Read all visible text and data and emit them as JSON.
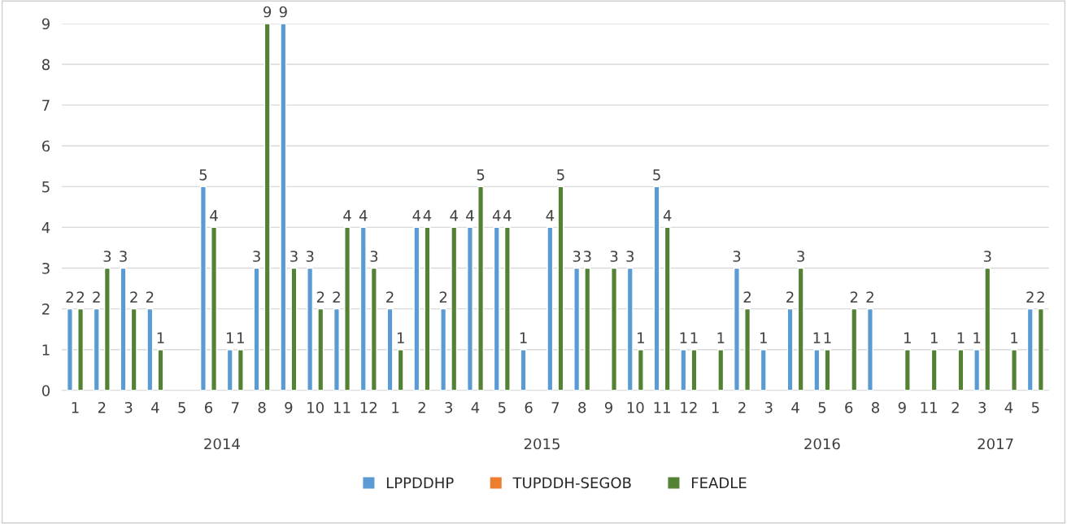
{
  "chart_data": {
    "type": "bar",
    "categories": [
      "1",
      "2",
      "3",
      "4",
      "5",
      "6",
      "7",
      "8",
      "9",
      "10",
      "11",
      "12",
      "1",
      "2",
      "3",
      "4",
      "5",
      "6",
      "7",
      "8",
      "9",
      "10",
      "11",
      "12",
      "1",
      "2",
      "3",
      "4",
      "5",
      "6",
      "8",
      "9",
      "11",
      "2",
      "3",
      "4",
      "5"
    ],
    "series": [
      {
        "name": "LPPDDHP",
        "color": "#5b9bd5",
        "values": [
          2,
          2,
          3,
          2,
          null,
          5,
          1,
          3,
          9,
          3,
          2,
          4,
          2,
          4,
          2,
          4,
          4,
          1,
          4,
          3,
          null,
          3,
          5,
          1,
          null,
          3,
          1,
          2,
          1,
          null,
          2,
          null,
          null,
          null,
          1,
          null,
          2
        ]
      },
      {
        "name": "TUPDDH-SEGOB",
        "color": "#ed7d31",
        "values": [
          null,
          null,
          null,
          null,
          null,
          null,
          null,
          null,
          null,
          null,
          null,
          null,
          null,
          null,
          null,
          null,
          null,
          null,
          null,
          null,
          null,
          null,
          null,
          null,
          null,
          null,
          null,
          null,
          null,
          null,
          null,
          null,
          null,
          null,
          null,
          null,
          null
        ]
      },
      {
        "name": "FEADLE",
        "color": "#548235",
        "values": [
          2,
          3,
          2,
          1,
          null,
          4,
          1,
          9,
          3,
          2,
          4,
          3,
          1,
          4,
          4,
          5,
          4,
          null,
          5,
          3,
          3,
          1,
          4,
          1,
          1,
          2,
          null,
          3,
          1,
          2,
          null,
          1,
          1,
          1,
          3,
          1,
          2
        ]
      }
    ],
    "annotations": [
      "2014",
      "2015",
      "2016",
      "2017"
    ],
    "ylim": [
      0,
      9
    ],
    "yticks": [
      0,
      1,
      2,
      3,
      4,
      5,
      6,
      7,
      8,
      9
    ],
    "grid": "y",
    "legend": "bottom",
    "data_labels": true
  }
}
